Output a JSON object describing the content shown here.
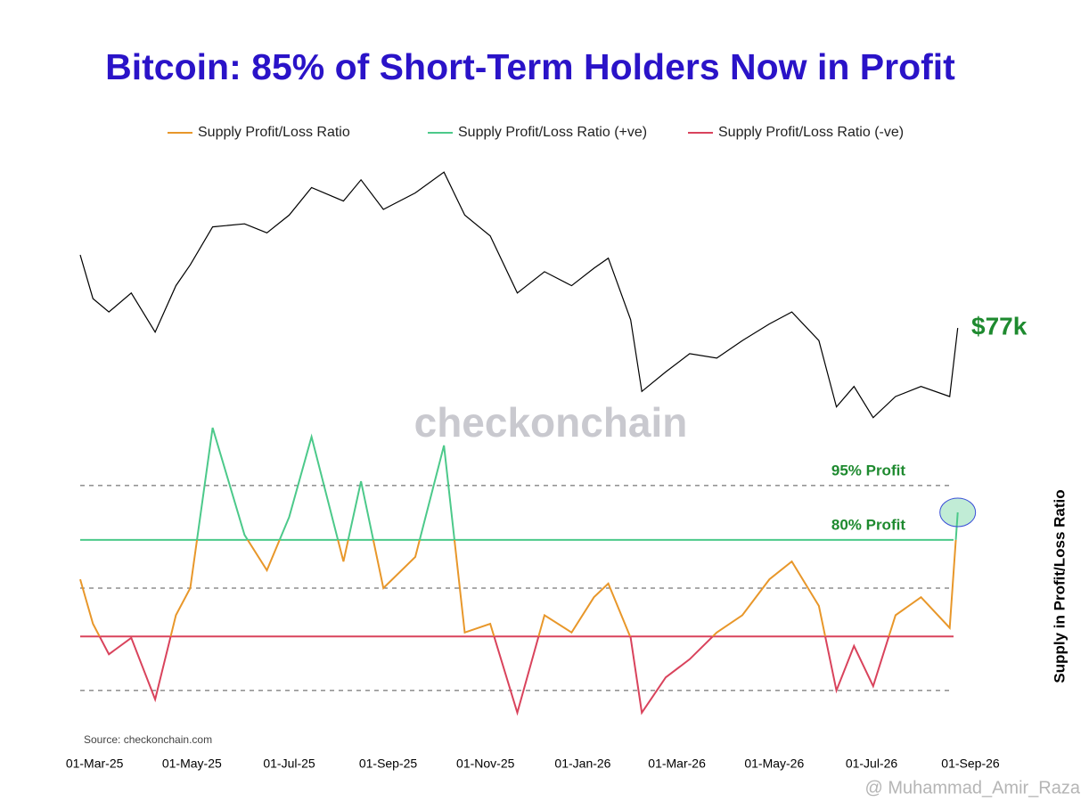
{
  "chart_data": {
    "type": "line",
    "title": "Bitcoin: 85% of Short-Term Holders Now in Profit",
    "y_label": "Supply in Profit/Loss Ratio",
    "source": "Source: checkonchain.com",
    "watermark": "checkonchain",
    "credit": "@ Muhammad_Amir_Raza",
    "x": [
      "2025-02-20",
      "2025-02-28",
      "2025-03-10",
      "2025-03-24",
      "2025-04-08",
      "2025-04-21",
      "2025-04-30",
      "2025-05-14",
      "2025-06-03",
      "2025-06-17",
      "2025-07-01",
      "2025-07-15",
      "2025-08-04",
      "2025-08-15",
      "2025-08-29",
      "2025-09-18",
      "2025-10-06",
      "2025-10-19",
      "2025-11-04",
      "2025-11-21",
      "2025-12-08",
      "2025-12-25",
      "2026-01-08",
      "2026-01-17",
      "2026-01-31",
      "2026-02-07",
      "2026-02-22",
      "2026-03-09",
      "2026-03-26",
      "2026-04-11",
      "2026-04-28",
      "2026-05-12",
      "2026-05-29",
      "2026-06-09",
      "2026-06-20",
      "2026-07-02",
      "2026-07-16",
      "2026-08-01",
      "2026-08-19",
      "2026-08-24"
    ],
    "xlim": [
      "2025-02-20",
      "2026-09-01"
    ],
    "xticks": [
      {
        "value": "2025-03-01",
        "label": "01-Mar-25"
      },
      {
        "value": "2025-05-01",
        "label": "01-May-25"
      },
      {
        "value": "2025-07-01",
        "label": "01-Jul-25"
      },
      {
        "value": "2025-09-01",
        "label": "01-Sep-25"
      },
      {
        "value": "2025-11-01",
        "label": "01-Nov-25"
      },
      {
        "value": "2026-01-01",
        "label": "01-Jan-26"
      },
      {
        "value": "2026-03-01",
        "label": "01-Mar-26"
      },
      {
        "value": "2026-05-01",
        "label": "01-May-26"
      },
      {
        "value": "2026-07-01",
        "label": "01-Jul-26"
      },
      {
        "value": "2026-09-01",
        "label": "01-Sep-26"
      }
    ],
    "series": [
      {
        "name": "Supply Profit/Loss Ratio",
        "color": "#e8972a",
        "values": [
          1.29,
          0.36,
          0.15,
          0.24,
          0.041,
          0.46,
          1.0,
          100,
          4.6,
          1.67,
          7.7,
          77,
          2.15,
          21.5,
          1.0,
          2.45,
          60,
          0.28,
          0.36,
          0.028,
          0.46,
          0.28,
          0.77,
          1.14,
          0.24,
          0.028,
          0.077,
          0.13,
          0.28,
          0.46,
          1.29,
          2.15,
          0.6,
          0.053,
          0.19,
          0.06,
          0.46,
          0.77,
          0.32,
          8.8
        ]
      },
      {
        "name": "Supply Profit/Loss Ratio (+ve)",
        "color": "#4cc98a",
        "threshold": 4
      },
      {
        "name": "Supply Profit/Loss Ratio (-ve)",
        "color": "#d9435c",
        "threshold": 0.25
      }
    ],
    "yscale": "log",
    "ylim": [
      0.0167,
      278
    ],
    "yticks": [
      19,
      4,
      1,
      0.25,
      0.053
    ],
    "grid": "dashed",
    "annotations": [
      {
        "text": "95% Profit",
        "value": 19
      },
      {
        "text": "80% Profit",
        "value": 4
      }
    ],
    "price": {
      "color": "#000000",
      "yscale": "log",
      "ylim": [
        53100,
        142300
      ],
      "values": [
        97000,
        84500,
        81000,
        86000,
        76000,
        88000,
        94000,
        106000,
        107000,
        104000,
        110000,
        120000,
        115000,
        123000,
        112000,
        118000,
        126000,
        110000,
        103000,
        86000,
        92000,
        88000,
        93000,
        96000,
        79000,
        63000,
        67000,
        71000,
        70000,
        74000,
        78000,
        81000,
        74000,
        60000,
        64000,
        58000,
        62000,
        64000,
        62000,
        77000
      ],
      "label": "$77k"
    }
  }
}
